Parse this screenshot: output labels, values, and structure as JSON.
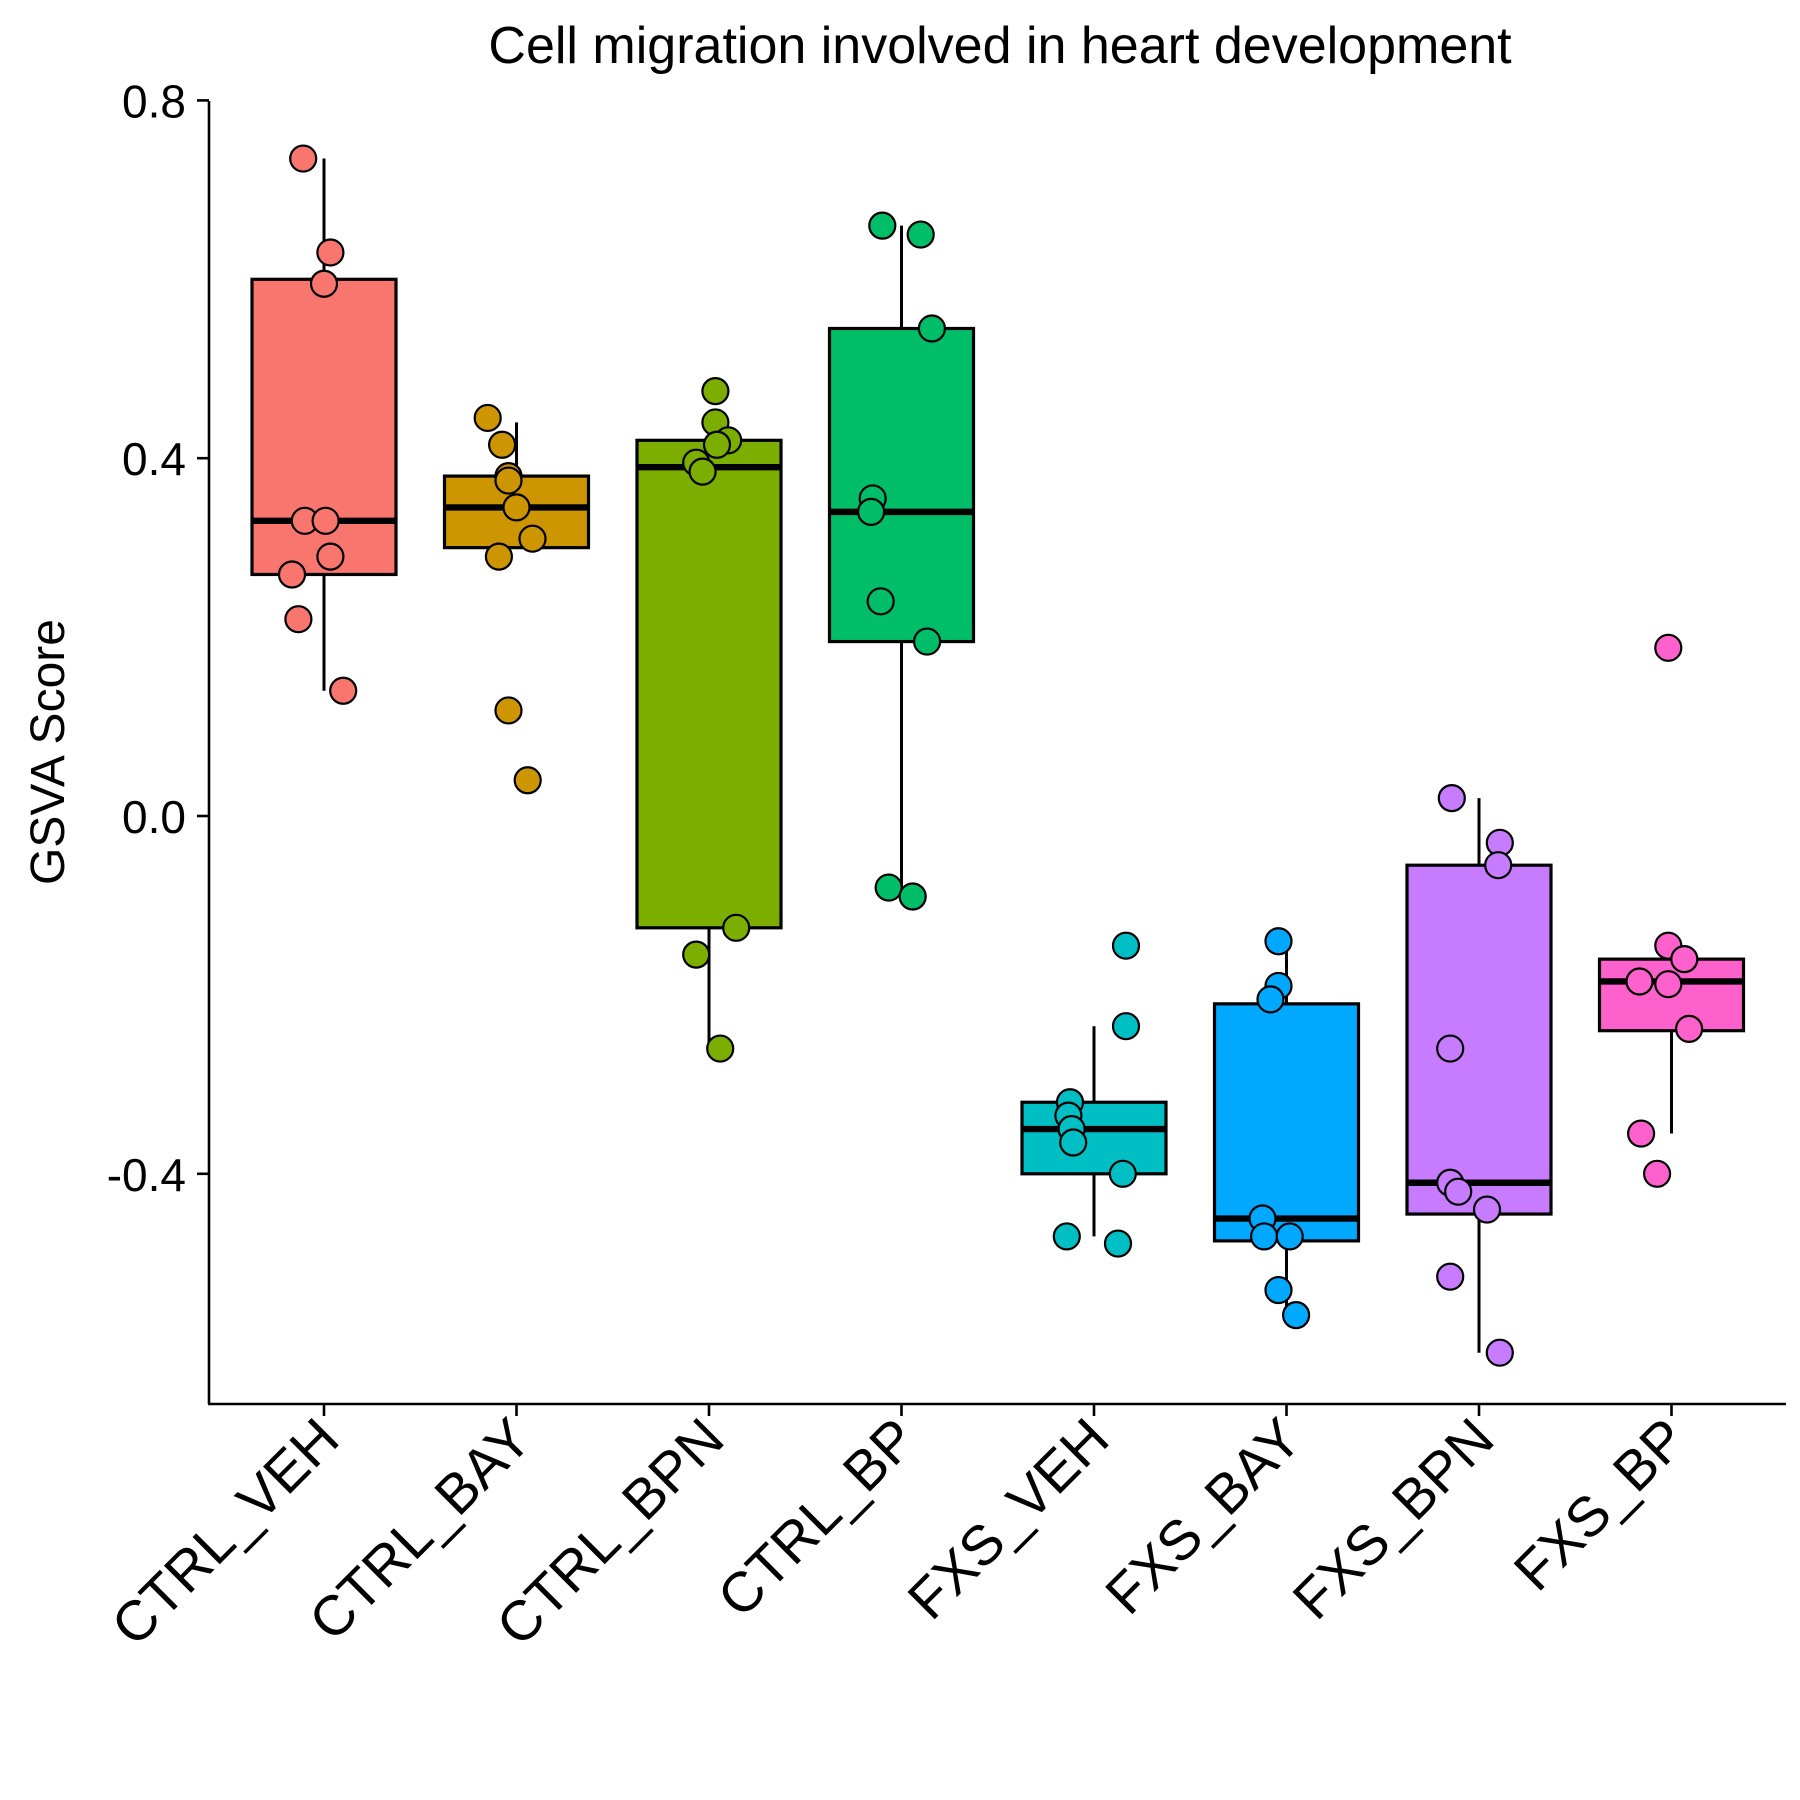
{
  "chart_data": {
    "type": "box",
    "title": "Cell migration involved in heart development",
    "xlabel": "",
    "ylabel": "GSVA Score",
    "ylim": [
      -0.66,
      0.81
    ],
    "yticks": [
      {
        "value": 0.8,
        "label": "0.8"
      },
      {
        "value": 0.4,
        "label": "0.4"
      },
      {
        "value": 0.0,
        "label": "0.0"
      },
      {
        "value": -0.4,
        "label": "-0.4"
      }
    ],
    "grid": false,
    "legend": "none",
    "categories": [
      "CTRL_VEH",
      "CTRL_BAY",
      "CTRL_BPN",
      "CTRL_BP",
      "FXS_VEH",
      "FXS_BAY",
      "FXS_BPN",
      "FXS_BP"
    ],
    "groups": [
      {
        "name": "CTRL_VEH",
        "color": "#F8766D",
        "box": {
          "low": 0.14,
          "q1": 0.27,
          "median": 0.33,
          "q3": 0.6,
          "high": 0.735
        },
        "points": [
          [
            -0.13,
            0.735
          ],
          [
            0.04,
            0.63
          ],
          [
            0.0,
            0.595
          ],
          [
            -0.12,
            0.33
          ],
          [
            0.01,
            0.33
          ],
          [
            -0.2,
            0.27
          ],
          [
            0.04,
            0.29
          ],
          [
            -0.16,
            0.22
          ],
          [
            0.12,
            0.14
          ]
        ]
      },
      {
        "name": "CTRL_BAY",
        "color": "#CD9600",
        "box": {
          "low": 0.3,
          "q1": 0.3,
          "median": 0.345,
          "q3": 0.38,
          "high": 0.44
        },
        "points": [
          [
            -0.18,
            0.445
          ],
          [
            -0.09,
            0.415
          ],
          [
            -0.05,
            0.38
          ],
          [
            -0.05,
            0.375
          ],
          [
            0.0,
            0.345
          ],
          [
            0.1,
            0.31
          ],
          [
            -0.11,
            0.29
          ],
          [
            -0.05,
            0.118
          ],
          [
            0.07,
            0.04
          ]
        ]
      },
      {
        "name": "CTRL_BPN",
        "color": "#7CAE00",
        "box": {
          "low": -0.26,
          "q1": -0.125,
          "median": 0.39,
          "q3": 0.42,
          "high": 0.42
        },
        "points": [
          [
            0.04,
            0.475
          ],
          [
            0.04,
            0.44
          ],
          [
            0.12,
            0.42
          ],
          [
            0.05,
            0.415
          ],
          [
            -0.08,
            0.395
          ],
          [
            -0.04,
            0.385
          ],
          [
            0.17,
            -0.125
          ],
          [
            -0.08,
            -0.155
          ],
          [
            0.07,
            -0.26
          ]
        ]
      },
      {
        "name": "CTRL_BP",
        "color": "#00BE67",
        "box": {
          "low": -0.085,
          "q1": 0.195,
          "median": 0.34,
          "q3": 0.545,
          "high": 0.66
        },
        "points": [
          [
            -0.12,
            0.66
          ],
          [
            0.12,
            0.65
          ],
          [
            0.19,
            0.545
          ],
          [
            -0.18,
            0.355
          ],
          [
            -0.19,
            0.34
          ],
          [
            -0.13,
            0.24
          ],
          [
            0.16,
            0.195
          ],
          [
            -0.08,
            -0.08
          ],
          [
            0.07,
            -0.09
          ]
        ]
      },
      {
        "name": "FXS_VEH",
        "color": "#00BFC4",
        "box": {
          "low": -0.47,
          "q1": -0.4,
          "median": -0.35,
          "q3": -0.32,
          "high": -0.235
        },
        "points": [
          [
            0.2,
            -0.145
          ],
          [
            0.2,
            -0.235
          ],
          [
            -0.15,
            -0.32
          ],
          [
            -0.16,
            -0.335
          ],
          [
            -0.14,
            -0.35
          ],
          [
            -0.13,
            -0.365
          ],
          [
            0.18,
            -0.4
          ],
          [
            -0.17,
            -0.47
          ],
          [
            0.15,
            -0.478
          ]
        ]
      },
      {
        "name": "FXS_BAY",
        "color": "#00A9FF",
        "box": {
          "low": -0.56,
          "q1": -0.475,
          "median": -0.45,
          "q3": -0.21,
          "high": -0.14
        },
        "points": [
          [
            -0.05,
            -0.14
          ],
          [
            -0.05,
            -0.19
          ],
          [
            -0.1,
            -0.205
          ],
          [
            -0.15,
            -0.45
          ],
          [
            -0.14,
            -0.47
          ],
          [
            0.02,
            -0.47
          ],
          [
            -0.05,
            -0.53
          ],
          [
            0.06,
            -0.558
          ]
        ]
      },
      {
        "name": "FXS_BPN",
        "color": "#C77CFF",
        "box": {
          "low": -0.6,
          "q1": -0.445,
          "median": -0.41,
          "q3": -0.055,
          "high": 0.02
        },
        "points": [
          [
            -0.17,
            0.02
          ],
          [
            0.13,
            -0.03
          ],
          [
            0.12,
            -0.055
          ],
          [
            -0.18,
            -0.26
          ],
          [
            -0.18,
            -0.41
          ],
          [
            -0.13,
            -0.42
          ],
          [
            0.05,
            -0.44
          ],
          [
            -0.18,
            -0.515
          ],
          [
            0.13,
            -0.6
          ]
        ]
      },
      {
        "name": "FXS_BP",
        "color": "#FF61CC",
        "box": {
          "low": -0.355,
          "q1": -0.24,
          "median": -0.185,
          "q3": -0.16,
          "high": -0.155
        },
        "points": [
          [
            -0.02,
            0.188
          ],
          [
            -0.02,
            -0.145
          ],
          [
            0.08,
            -0.16
          ],
          [
            -0.2,
            -0.185
          ],
          [
            -0.02,
            -0.188
          ],
          [
            0.11,
            -0.238
          ],
          [
            -0.19,
            -0.355
          ],
          [
            -0.09,
            -0.4
          ]
        ]
      }
    ]
  }
}
